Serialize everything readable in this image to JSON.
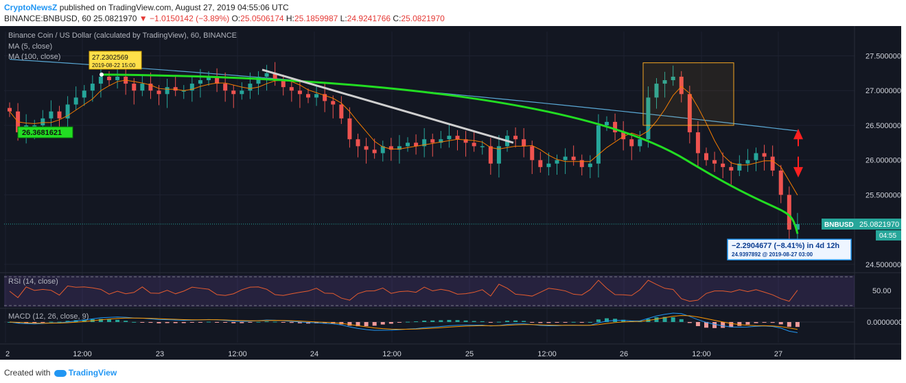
{
  "header": {
    "author": "CryptoNewsZ",
    "published_text": "published on TradingView.com, August 27, 2019 04:55:06 UTC",
    "symbol": "BINANCE:BNBUSD, 60",
    "last": "25.0821970",
    "change": "−1.0150142 (−3.89%)",
    "open_label": "O:",
    "open": "25.0506174",
    "high_label": "H:",
    "high": "25.1859987",
    "low_label": "L:",
    "low": "24.9241766",
    "close_label": "C:",
    "close": "25.0821970"
  },
  "legend": {
    "title": "Binance Coin / US Dollar (calculated by TradingView), 60, BINANCE",
    "ma5": "MA (5, close)",
    "ma100": "MA (100, close)",
    "rsi": "RSI (14, close)",
    "macd": "MACD (12, 26, close, 9)"
  },
  "annotations": {
    "high_tag_price": "27.2302569",
    "high_tag_time": "2019-08-22 15:00",
    "low_tag_price": "26.3681621",
    "range_measure": "−2.2904677 (−8.41%) in 4d 12h",
    "range_detail": "24.9397892 @ 2019-08-27 03:00",
    "symbol_tag": "BNBUSD",
    "price_tag": "25.0821970",
    "time_tag": "04:55"
  },
  "footer": {
    "created_with": "Created with",
    "brand": "TradingView"
  },
  "colors": {
    "background": "#131722",
    "up": "#26a69a",
    "down": "#ef5350",
    "ma5": "#f57c00",
    "ma100": "#5aa9d6",
    "trend_green": "#22dd22",
    "trend_white": "#cfcfcf",
    "rsi_line": "#e65c2f",
    "macd_line": "#2196f3",
    "signal_line": "#ff9800",
    "box": "#f5a623"
  },
  "chart_data": {
    "type": "candlestick",
    "symbol": "BNBUSD",
    "interval": "60",
    "y_range": [
      24.4,
      27.85
    ],
    "y_ticks": [
      "27.5000000",
      "27.0000000",
      "26.5000000",
      "26.0000000",
      "25.5000000",
      "24.5000000"
    ],
    "x_ticks": [
      "2",
      "12:00",
      "23",
      "12:00",
      "24",
      "12:00",
      "25",
      "12:00",
      "26",
      "12:00",
      "27"
    ],
    "rsi_ticks": [
      "50.00"
    ],
    "macd_ticks": [
      "0.0000000"
    ],
    "candles_close": [
      26.7,
      26.4,
      26.5,
      26.5,
      26.6,
      26.7,
      26.6,
      26.8,
      26.9,
      27.0,
      27.1,
      27.2,
      27.15,
      27.2,
      27.1,
      27.0,
      27.1,
      27.0,
      26.95,
      27.05,
      27.0,
      27.0,
      27.1,
      27.15,
      27.2,
      27.1,
      27.0,
      26.95,
      27.0,
      27.1,
      27.2,
      27.25,
      27.15,
      27.05,
      27.0,
      26.95,
      26.9,
      26.95,
      26.85,
      26.8,
      26.6,
      26.3,
      26.2,
      26.15,
      26.1,
      26.2,
      26.15,
      26.2,
      26.25,
      26.2,
      26.3,
      26.25,
      26.3,
      26.35,
      26.3,
      26.25,
      26.2,
      26.2,
      25.95,
      26.2,
      26.35,
      26.3,
      26.2,
      26.0,
      25.9,
      25.95,
      26.0,
      26.05,
      26.0,
      25.9,
      25.95,
      26.5,
      26.55,
      26.4,
      26.3,
      26.2,
      26.3,
      26.9,
      27.1,
      27.15,
      27.2,
      26.95,
      26.4,
      26.1,
      26.0,
      25.95,
      25.9,
      25.85,
      25.95,
      26.0,
      26.1,
      26.05,
      25.85,
      25.5,
      25.0,
      25.08
    ],
    "ma100_start": 27.45,
    "ma100_end": 26.42,
    "rsi_range": [
      0,
      100
    ],
    "macd_range": [
      -1,
      1
    ]
  }
}
